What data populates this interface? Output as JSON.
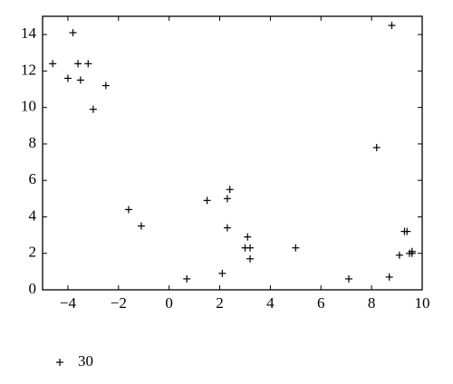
{
  "chart_data": {
    "type": "scatter",
    "title": "",
    "xlabel": "",
    "ylabel": "",
    "xlim": [
      -5,
      10
    ],
    "ylim": [
      0,
      15
    ],
    "x_ticks": [
      -4,
      -2,
      0,
      2,
      4,
      6,
      8,
      10
    ],
    "y_ticks": [
      0,
      2,
      4,
      6,
      8,
      10,
      12,
      14
    ],
    "x_tick_labels": [
      "−4",
      "−2",
      "0",
      "2",
      "4",
      "6",
      "8",
      "10"
    ],
    "y_tick_labels": [
      "0",
      "2",
      "4",
      "6",
      "8",
      "10",
      "12",
      "14"
    ],
    "grid": false,
    "marker": "+",
    "legend_position": "bottom-left",
    "series": [
      {
        "name": "30",
        "x": [
          -4.6,
          -3.8,
          -4.0,
          -3.6,
          -3.2,
          -3.5,
          -2.5,
          -3.0,
          -1.6,
          -1.1,
          0.7,
          1.5,
          2.1,
          2.3,
          2.4,
          2.3,
          3.0,
          3.1,
          3.2,
          3.2,
          5.0,
          7.1,
          8.2,
          8.8,
          8.7,
          9.1,
          9.3,
          9.4,
          9.5,
          9.6,
          9.6
        ],
        "y": [
          12.4,
          14.1,
          11.6,
          12.4,
          12.4,
          11.5,
          11.2,
          9.9,
          4.4,
          3.5,
          0.6,
          4.9,
          0.9,
          5.0,
          5.5,
          3.4,
          2.3,
          2.9,
          2.3,
          1.7,
          2.3,
          0.6,
          7.8,
          14.5,
          0.7,
          1.9,
          3.2,
          3.2,
          2.0,
          2.1,
          2.0
        ]
      }
    ]
  }
}
